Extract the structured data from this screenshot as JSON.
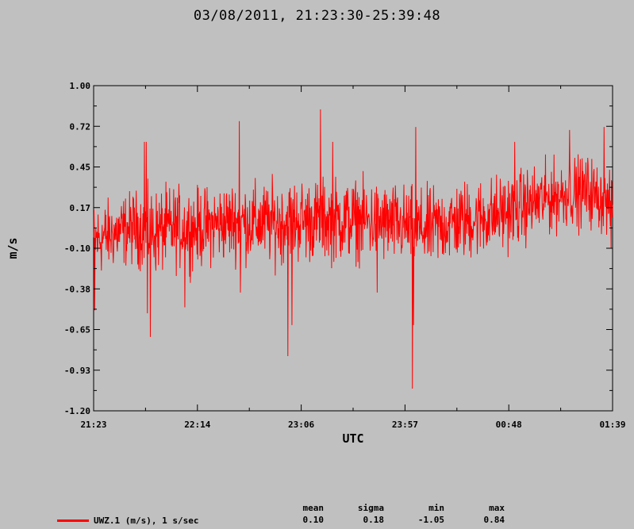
{
  "title": "03/08/2011, 21:23:30-25:39:48",
  "colors": {
    "background": "#c0c0c0",
    "trace": "#ff0000",
    "axis": "#000000"
  },
  "legend": {
    "label": "UWZ.1 (m/s), 1 s/sec",
    "color": "#ff0000"
  },
  "stats": {
    "headers": [
      "mean",
      "sigma",
      "min",
      "max"
    ],
    "values": [
      "0.10",
      "0.18",
      "-1.05",
      "0.84"
    ]
  },
  "chart_data": {
    "type": "line",
    "title": "03/08/2011, 21:23:30-25:39:48",
    "xlabel": "UTC",
    "ylabel": "m/s",
    "x_tick_labels": [
      "21:23",
      "22:14",
      "23:06",
      "23:57",
      "00:48",
      "01:39"
    ],
    "y_tick_labels": [
      "1.00",
      "0.72",
      "0.45",
      "0.17",
      "-0.10",
      "-0.38",
      "-0.65",
      "-0.93",
      "-1.20"
    ],
    "ylim": [
      -1.2,
      1.0
    ],
    "xlim": [
      "21:23",
      "01:39"
    ],
    "grid": false,
    "legend_position": "bottom-left",
    "series": [
      {
        "name": "UWZ.1 (m/s), 1 s/sec",
        "color": "#ff0000",
        "sample_rate_label": "1 s/sec",
        "envelope": {
          "x_minutes_from_start": [
            0,
            10,
            20,
            30,
            40,
            51,
            60,
            70,
            80,
            90,
            103,
            110,
            120,
            130,
            140,
            154,
            165,
            175,
            185,
            195,
            205,
            215,
            225,
            235,
            245,
            256
          ],
          "upper": [
            0.3,
            0.32,
            0.38,
            0.4,
            0.42,
            0.4,
            0.42,
            0.45,
            0.44,
            0.46,
            0.48,
            0.46,
            0.48,
            0.46,
            0.45,
            0.42,
            0.4,
            0.44,
            0.46,
            0.48,
            0.5,
            0.54,
            0.58,
            0.6,
            0.62,
            0.45
          ],
          "lower": [
            -0.4,
            -0.32,
            -0.3,
            -0.38,
            -0.35,
            -0.33,
            -0.3,
            -0.28,
            -0.3,
            -0.32,
            -0.3,
            -0.28,
            -0.3,
            -0.28,
            -0.3,
            -0.32,
            -0.35,
            -0.3,
            -0.28,
            -0.25,
            -0.2,
            -0.15,
            -0.1,
            -0.05,
            -0.05,
            -0.1
          ]
        },
        "spikes": [
          {
            "t": 0.5,
            "v": -0.52
          },
          {
            "t": 25,
            "v": 0.62
          },
          {
            "t": 26,
            "v": 0.62
          },
          {
            "t": 26.5,
            "v": -0.54
          },
          {
            "t": 28,
            "v": -0.7
          },
          {
            "t": 45,
            "v": -0.5
          },
          {
            "t": 72,
            "v": 0.76
          },
          {
            "t": 72.5,
            "v": -0.4
          },
          {
            "t": 96,
            "v": -0.83
          },
          {
            "t": 98,
            "v": -0.62
          },
          {
            "t": 112,
            "v": 0.84
          },
          {
            "t": 118,
            "v": 0.62
          },
          {
            "t": 140,
            "v": -0.4
          },
          {
            "t": 157.5,
            "v": -1.05
          },
          {
            "t": 158,
            "v": -0.62
          },
          {
            "t": 159,
            "v": 0.72
          },
          {
            "t": 208,
            "v": 0.62
          },
          {
            "t": 235,
            "v": 0.7
          },
          {
            "t": 252,
            "v": 0.72
          },
          {
            "t": 255.5,
            "v": -0.1
          }
        ]
      }
    ]
  }
}
